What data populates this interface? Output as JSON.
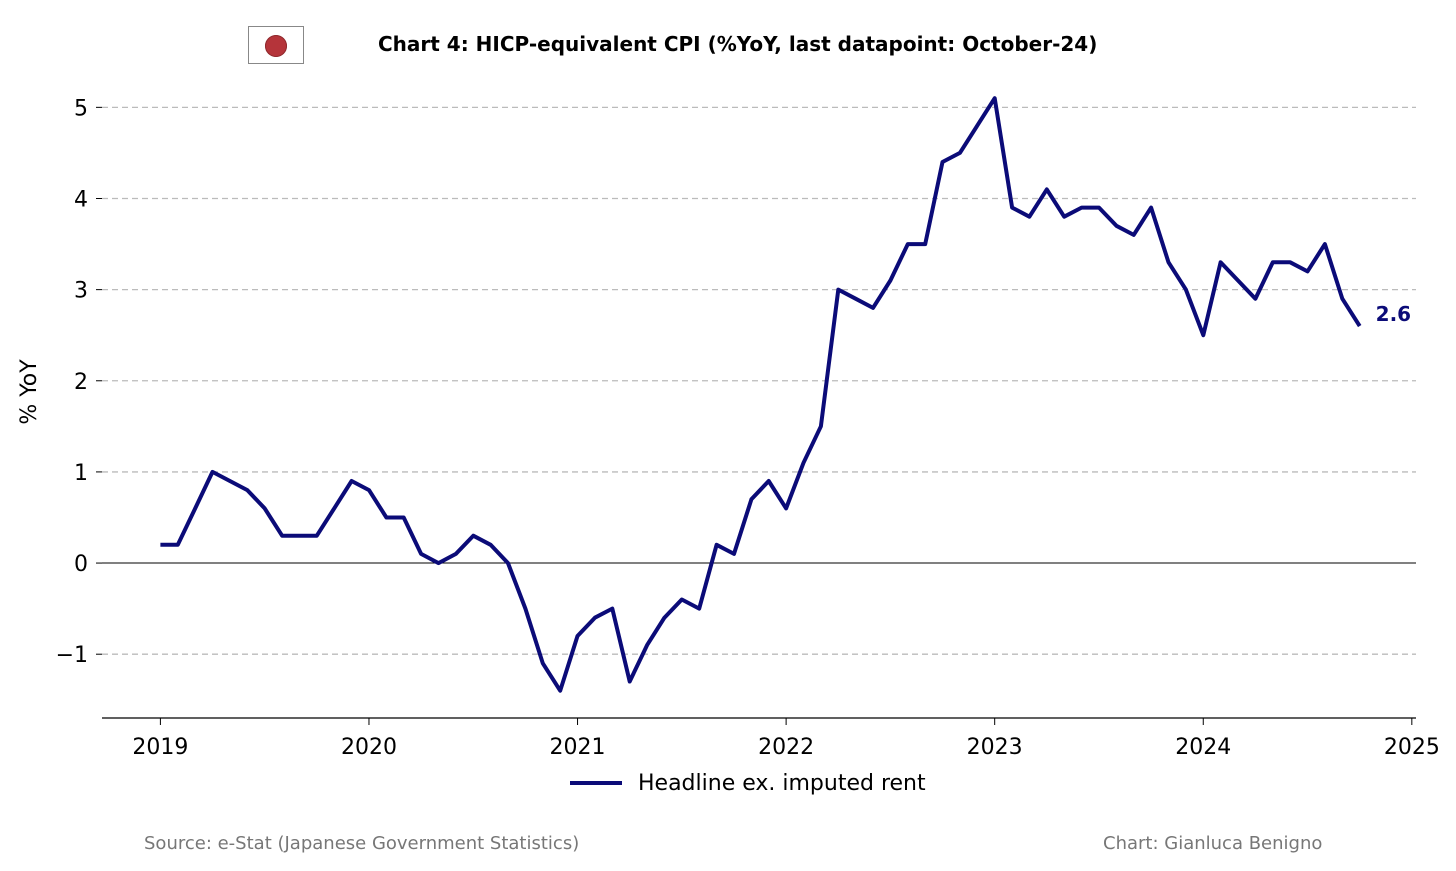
{
  "title": "Chart 4: HICP-equivalent CPI (%YoY, last datapoint: October-24)",
  "source_note": "Source: e-Stat (Japanese Government Statistics)",
  "credit_note": "Chart: Gianluca Benigno",
  "flag_icon": "japan-flag-icon",
  "colors": {
    "series": "#0b0b78",
    "grid": "#bbbbbb",
    "zero_line": "#000000"
  },
  "chart_data": {
    "type": "line",
    "title": "Chart 4: HICP-equivalent CPI (%YoY, last datapoint: October-24)",
    "xlabel": "",
    "ylabel": "% YoY",
    "xlim": [
      2018.72,
      2025.02
    ],
    "ylim": [
      -1.7,
      5.3
    ],
    "x_ticks": [
      2019,
      2020,
      2021,
      2022,
      2023,
      2024,
      2025
    ],
    "x_tick_labels": [
      "2019",
      "2020",
      "2021",
      "2022",
      "2023",
      "2024",
      "2025"
    ],
    "y_ticks": [
      -1,
      0,
      1,
      2,
      3,
      4,
      5
    ],
    "y_tick_labels": [
      "−1",
      "0",
      "1",
      "2",
      "3",
      "4",
      "5"
    ],
    "grid": "horizontal dashed",
    "legend_position": "bottom-center",
    "end_label": "2.6",
    "series": [
      {
        "name": "Headline ex. imputed rent",
        "x": [
          "2019-01",
          "2019-02",
          "2019-03",
          "2019-04",
          "2019-05",
          "2019-06",
          "2019-07",
          "2019-08",
          "2019-09",
          "2019-10",
          "2019-11",
          "2019-12",
          "2020-01",
          "2020-02",
          "2020-03",
          "2020-04",
          "2020-05",
          "2020-06",
          "2020-07",
          "2020-08",
          "2020-09",
          "2020-10",
          "2020-11",
          "2020-12",
          "2021-01",
          "2021-02",
          "2021-03",
          "2021-04",
          "2021-05",
          "2021-06",
          "2021-07",
          "2021-08",
          "2021-09",
          "2021-10",
          "2021-11",
          "2021-12",
          "2022-01",
          "2022-02",
          "2022-03",
          "2022-04",
          "2022-05",
          "2022-06",
          "2022-07",
          "2022-08",
          "2022-09",
          "2022-10",
          "2022-11",
          "2022-12",
          "2023-01",
          "2023-02",
          "2023-03",
          "2023-04",
          "2023-05",
          "2023-06",
          "2023-07",
          "2023-08",
          "2023-09",
          "2023-10",
          "2023-11",
          "2023-12",
          "2024-01",
          "2024-02",
          "2024-03",
          "2024-04",
          "2024-05",
          "2024-06",
          "2024-07",
          "2024-08",
          "2024-09",
          "2024-10"
        ],
        "values": [
          0.2,
          0.2,
          0.6,
          1.0,
          0.9,
          0.8,
          0.6,
          0.3,
          0.3,
          0.3,
          0.6,
          0.9,
          0.8,
          0.5,
          0.5,
          0.1,
          0.0,
          0.1,
          0.3,
          0.2,
          0.0,
          -0.5,
          -1.1,
          -1.4,
          -0.8,
          -0.6,
          -0.5,
          -1.3,
          -0.9,
          -0.6,
          -0.4,
          -0.5,
          0.2,
          0.1,
          0.7,
          0.9,
          0.6,
          1.1,
          1.5,
          3.0,
          2.9,
          2.8,
          3.1,
          3.5,
          3.5,
          4.4,
          4.5,
          4.8,
          5.1,
          3.9,
          3.8,
          4.1,
          3.8,
          3.9,
          3.9,
          3.7,
          3.6,
          3.9,
          3.3,
          3.0,
          2.5,
          3.3,
          3.1,
          2.9,
          3.3,
          3.3,
          3.2,
          3.5,
          2.9,
          2.6
        ]
      }
    ]
  }
}
